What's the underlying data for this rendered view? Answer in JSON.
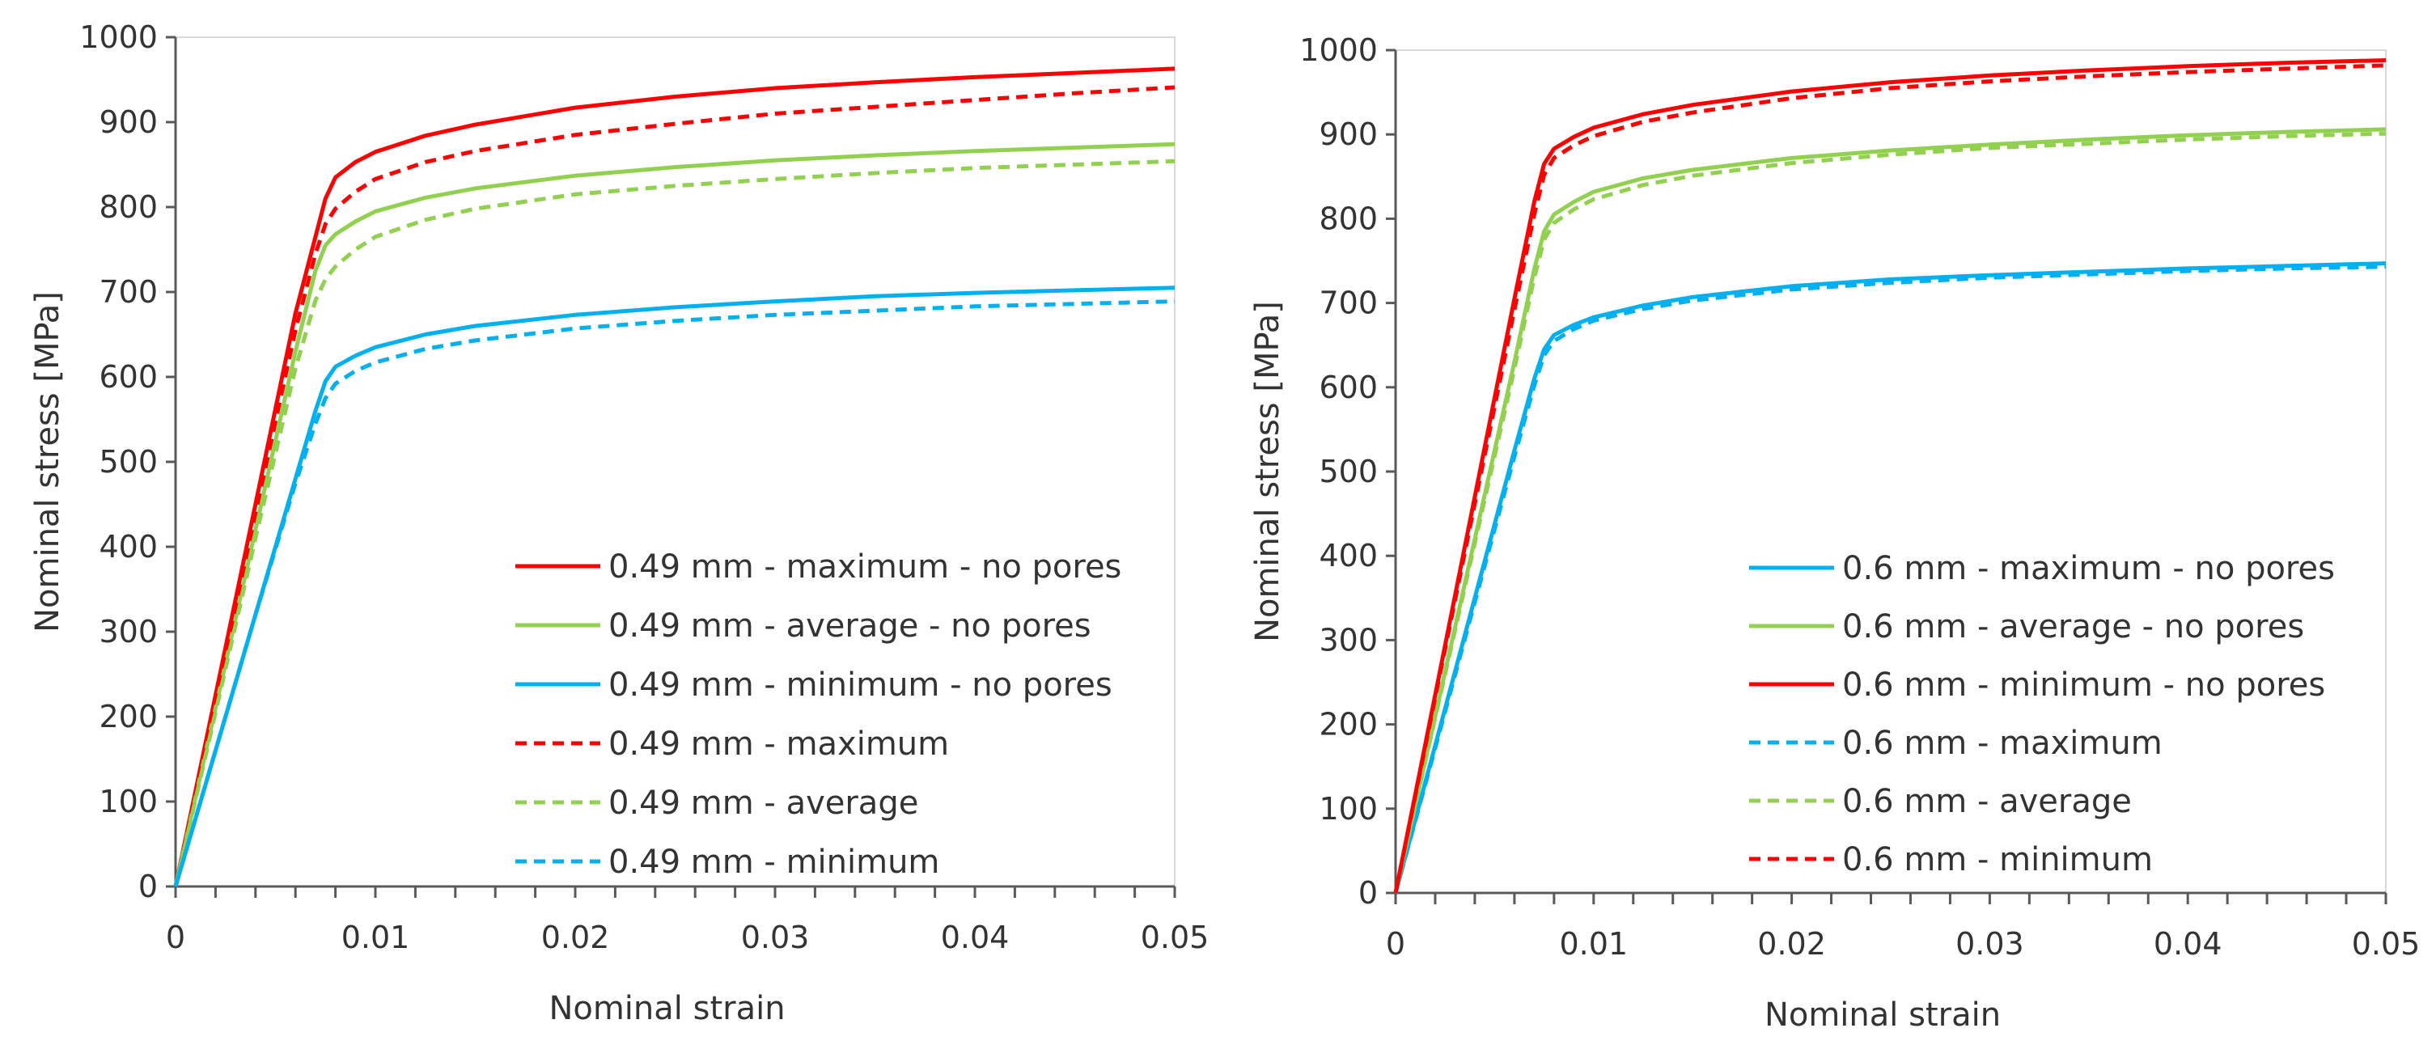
{
  "chart_data": [
    {
      "type": "line",
      "title": "",
      "xlabel": "Nominal strain",
      "ylabel": "Nominal stress [MPa]",
      "xlim": [
        0,
        0.05
      ],
      "ylim": [
        0,
        1000
      ],
      "xticks": [
        "0",
        "0.01",
        "0.02",
        "0.03",
        "0.04",
        "0.05"
      ],
      "yticks": [
        "0",
        "100",
        "200",
        "300",
        "400",
        "500",
        "600",
        "700",
        "800",
        "900",
        "1000"
      ],
      "legend_position": "bottom-right",
      "series": [
        {
          "name": "0.49 mm - maximum - no pores",
          "color": "#ff0000",
          "dash": "solid",
          "x": [
            0,
            0.002,
            0.004,
            0.006,
            0.0075,
            0.008,
            0.009,
            0.01,
            0.0125,
            0.015,
            0.02,
            0.025,
            0.03,
            0.035,
            0.04,
            0.045,
            0.05
          ],
          "y": [
            0,
            225,
            450,
            675,
            810,
            835,
            853,
            865,
            884,
            897,
            917,
            930,
            940,
            947,
            953,
            958,
            963
          ]
        },
        {
          "name": "0.49 mm - average - no pores",
          "color": "#92d050",
          "dash": "solid",
          "x": [
            0,
            0.002,
            0.004,
            0.006,
            0.007,
            0.0075,
            0.008,
            0.009,
            0.01,
            0.0125,
            0.015,
            0.02,
            0.025,
            0.03,
            0.035,
            0.04,
            0.045,
            0.05
          ],
          "y": [
            0,
            210,
            420,
            630,
            725,
            755,
            768,
            783,
            795,
            811,
            822,
            837,
            847,
            855,
            861,
            866,
            870,
            874
          ]
        },
        {
          "name": "0.49 mm - minimum - no pores",
          "color": "#00b0f0",
          "dash": "solid",
          "x": [
            0,
            0.002,
            0.004,
            0.006,
            0.007,
            0.0075,
            0.008,
            0.009,
            0.01,
            0.0125,
            0.015,
            0.02,
            0.025,
            0.03,
            0.035,
            0.04,
            0.045,
            0.05
          ],
          "y": [
            0,
            160,
            320,
            480,
            560,
            595,
            612,
            625,
            635,
            650,
            660,
            673,
            682,
            689,
            695,
            699,
            702,
            705
          ]
        },
        {
          "name": "0.49 mm - maximum",
          "color": "#ff0000",
          "dash": "dashed",
          "x": [
            0,
            0.002,
            0.004,
            0.006,
            0.007,
            0.0075,
            0.008,
            0.009,
            0.01,
            0.0125,
            0.015,
            0.02,
            0.025,
            0.03,
            0.035,
            0.04,
            0.045,
            0.05
          ],
          "y": [
            0,
            220,
            440,
            655,
            745,
            780,
            798,
            818,
            833,
            853,
            866,
            885,
            898,
            910,
            918,
            926,
            934,
            941
          ]
        },
        {
          "name": "0.49 mm - average",
          "color": "#92d050",
          "dash": "dashed",
          "x": [
            0,
            0.002,
            0.004,
            0.006,
            0.007,
            0.0075,
            0.008,
            0.009,
            0.01,
            0.0125,
            0.015,
            0.02,
            0.025,
            0.03,
            0.035,
            0.04,
            0.045,
            0.05
          ],
          "y": [
            0,
            205,
            410,
            610,
            690,
            715,
            730,
            750,
            765,
            785,
            798,
            815,
            825,
            833,
            840,
            846,
            850,
            854
          ]
        },
        {
          "name": "0.49 mm - minimum",
          "color": "#00b0f0",
          "dash": "dashed",
          "x": [
            0,
            0.002,
            0.004,
            0.006,
            0.007,
            0.0075,
            0.008,
            0.009,
            0.01,
            0.0125,
            0.015,
            0.02,
            0.025,
            0.03,
            0.035,
            0.04,
            0.045,
            0.05
          ],
          "y": [
            0,
            160,
            320,
            475,
            545,
            575,
            592,
            607,
            617,
            633,
            643,
            657,
            666,
            673,
            678,
            683,
            686,
            689
          ]
        }
      ]
    },
    {
      "type": "line",
      "title": "",
      "xlabel": "Nominal strain",
      "ylabel": "Nominal stress [MPa]",
      "xlim": [
        0,
        0.05
      ],
      "ylim": [
        0,
        1000
      ],
      "xticks": [
        "0",
        "0.01",
        "0.02",
        "0.03",
        "0.04",
        "0.05"
      ],
      "yticks": [
        "0",
        "100",
        "200",
        "300",
        "400",
        "500",
        "600",
        "700",
        "800",
        "900",
        "1000"
      ],
      "legend_position": "bottom-right",
      "series": [
        {
          "name": "0.6 mm - maximum - no pores",
          "color": "#00b0f0",
          "dash": "solid",
          "x": [
            0,
            0.002,
            0.004,
            0.006,
            0.007,
            0.0075,
            0.008,
            0.009,
            0.01,
            0.0125,
            0.015,
            0.02,
            0.025,
            0.03,
            0.035,
            0.04,
            0.045,
            0.05
          ],
          "y": [
            0,
            175,
            350,
            525,
            610,
            645,
            662,
            674,
            683,
            697,
            707,
            720,
            728,
            733,
            737,
            741,
            744,
            747
          ]
        },
        {
          "name": "0.6 mm - average - no pores",
          "color": "#92d050",
          "dash": "solid",
          "x": [
            0,
            0.002,
            0.004,
            0.006,
            0.007,
            0.0075,
            0.008,
            0.009,
            0.01,
            0.0125,
            0.015,
            0.02,
            0.025,
            0.03,
            0.035,
            0.04,
            0.045,
            0.05
          ],
          "y": [
            0,
            210,
            420,
            630,
            740,
            785,
            805,
            820,
            832,
            848,
            858,
            872,
            881,
            888,
            894,
            899,
            903,
            906
          ]
        },
        {
          "name": "0.6 mm - minimum - no pores",
          "color": "#ff0000",
          "dash": "solid",
          "x": [
            0,
            0.002,
            0.004,
            0.006,
            0.007,
            0.0075,
            0.008,
            0.009,
            0.01,
            0.0125,
            0.015,
            0.02,
            0.025,
            0.03,
            0.035,
            0.04,
            0.045,
            0.05
          ],
          "y": [
            0,
            235,
            470,
            705,
            820,
            865,
            883,
            897,
            908,
            924,
            935,
            951,
            962,
            970,
            976,
            981,
            985,
            988
          ]
        },
        {
          "name": "0.6 mm - maximum",
          "color": "#00b0f0",
          "dash": "dashed",
          "x": [
            0,
            0.002,
            0.004,
            0.006,
            0.007,
            0.0075,
            0.008,
            0.009,
            0.01,
            0.0125,
            0.015,
            0.02,
            0.025,
            0.03,
            0.035,
            0.04,
            0.045,
            0.05
          ],
          "y": [
            0,
            172,
            345,
            518,
            602,
            638,
            655,
            669,
            679,
            693,
            703,
            716,
            724,
            730,
            734,
            738,
            741,
            743
          ]
        },
        {
          "name": "0.6 mm - average",
          "color": "#92d050",
          "dash": "dashed",
          "x": [
            0,
            0.002,
            0.004,
            0.006,
            0.007,
            0.0075,
            0.008,
            0.009,
            0.01,
            0.0125,
            0.015,
            0.02,
            0.025,
            0.03,
            0.035,
            0.04,
            0.045,
            0.05
          ],
          "y": [
            0,
            208,
            415,
            622,
            730,
            775,
            795,
            811,
            823,
            840,
            851,
            866,
            876,
            884,
            889,
            894,
            898,
            901
          ]
        },
        {
          "name": "0.6 mm - minimum",
          "color": "#ff0000",
          "dash": "dashed",
          "x": [
            0,
            0.002,
            0.004,
            0.006,
            0.007,
            0.0075,
            0.008,
            0.009,
            0.01,
            0.0125,
            0.015,
            0.02,
            0.025,
            0.03,
            0.035,
            0.04,
            0.045,
            0.05
          ],
          "y": [
            0,
            232,
            462,
            692,
            805,
            852,
            872,
            887,
            898,
            915,
            926,
            943,
            955,
            963,
            969,
            974,
            978,
            982
          ]
        }
      ]
    }
  ]
}
